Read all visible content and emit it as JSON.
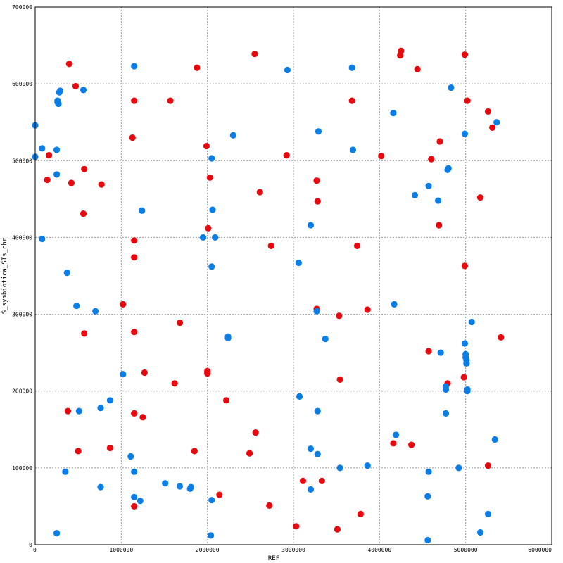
{
  "chart_data": {
    "type": "scatter",
    "xlabel": "REF",
    "ylabel": "S_symbiotica_STs_chr",
    "xlim": [
      0,
      6000000
    ],
    "ylim": [
      0,
      700000
    ],
    "x_ticks": [
      0,
      1000000,
      2000000,
      3000000,
      4000000,
      5000000,
      6000000
    ],
    "y_ticks": [
      0,
      100000,
      200000,
      300000,
      400000,
      500000,
      600000,
      700000
    ],
    "x_tick_labels": [
      "0",
      "1000000",
      "2000000",
      "3000000",
      "4000000",
      "5000000",
      "6000000"
    ],
    "y_tick_labels": [
      "0",
      "100000",
      "200000",
      "300000",
      "400000",
      "500000",
      "600000",
      "700000"
    ],
    "grid": true,
    "legend": "none",
    "series": [
      {
        "color": "#e8080e",
        "points": [
          [
            395000,
            626000
          ],
          [
            470000,
            597000
          ],
          [
            1150000,
            578000
          ],
          [
            1570000,
            578000
          ],
          [
            1880000,
            621000
          ],
          [
            2550000,
            639000
          ],
          [
            3680000,
            578000
          ],
          [
            4250000,
            643000
          ],
          [
            4240000,
            637000
          ],
          [
            4440000,
            619000
          ],
          [
            4990000,
            638000
          ],
          [
            5020000,
            578000
          ],
          [
            5260000,
            564000
          ],
          [
            5310000,
            543000
          ],
          [
            4700000,
            525000
          ],
          [
            1130000,
            530000
          ],
          [
            1990000,
            519000
          ],
          [
            2920000,
            507000
          ],
          [
            4020000,
            506000
          ],
          [
            4600000,
            502000
          ],
          [
            160000,
            507000
          ],
          [
            140000,
            475000
          ],
          [
            570000,
            489000
          ],
          [
            420000,
            471000
          ],
          [
            770000,
            469000
          ],
          [
            2030000,
            478000
          ],
          [
            3270000,
            474000
          ],
          [
            2610000,
            459000
          ],
          [
            3280000,
            447000
          ],
          [
            5170000,
            452000
          ],
          [
            560000,
            431000
          ],
          [
            1150000,
            396000
          ],
          [
            2010000,
            412000
          ],
          [
            2740000,
            389000
          ],
          [
            3740000,
            389000
          ],
          [
            4690000,
            416000
          ],
          [
            1150000,
            374000
          ],
          [
            4990000,
            363000
          ],
          [
            1020000,
            313000
          ],
          [
            3270000,
            307000
          ],
          [
            3860000,
            306000
          ],
          [
            3530000,
            298000
          ],
          [
            570000,
            275000
          ],
          [
            1150000,
            277000
          ],
          [
            1680000,
            289000
          ],
          [
            5410000,
            270000
          ],
          [
            4570000,
            252000
          ],
          [
            1270000,
            224000
          ],
          [
            2000000,
            226000
          ],
          [
            2000000,
            223000
          ],
          [
            1620000,
            210000
          ],
          [
            3540000,
            215000
          ],
          [
            4980000,
            218000
          ],
          [
            4790000,
            210000
          ],
          [
            380000,
            174000
          ],
          [
            1150000,
            171000
          ],
          [
            1250000,
            166000
          ],
          [
            2220000,
            188000
          ],
          [
            500000,
            122000
          ],
          [
            870000,
            126000
          ],
          [
            1850000,
            122000
          ],
          [
            2490000,
            119000
          ],
          [
            2560000,
            146000
          ],
          [
            4160000,
            132000
          ],
          [
            4370000,
            130000
          ],
          [
            5260000,
            103000
          ],
          [
            3110000,
            83000
          ],
          [
            3330000,
            83000
          ],
          [
            2140000,
            65000
          ],
          [
            1150000,
            50000
          ],
          [
            2720000,
            51000
          ],
          [
            3780000,
            40000
          ],
          [
            3030000,
            24000
          ],
          [
            3510000,
            20000
          ]
        ]
      },
      {
        "color": "#0a7ee6",
        "points": [
          [
            0,
            546000
          ],
          [
            290000,
            591000
          ],
          [
            280000,
            589000
          ],
          [
            560000,
            592000
          ],
          [
            260000,
            578000
          ],
          [
            260000,
            576000
          ],
          [
            270000,
            574000
          ],
          [
            1150000,
            623000
          ],
          [
            2930000,
            618000
          ],
          [
            3680000,
            621000
          ],
          [
            4830000,
            595000
          ],
          [
            4160000,
            562000
          ],
          [
            5360000,
            550000
          ],
          [
            4990000,
            535000
          ],
          [
            3290000,
            538000
          ],
          [
            2300000,
            533000
          ],
          [
            3690000,
            514000
          ],
          [
            80000,
            516000
          ],
          [
            250000,
            514000
          ],
          [
            0,
            505000
          ],
          [
            2050000,
            503000
          ],
          [
            250000,
            482000
          ],
          [
            4800000,
            490000
          ],
          [
            4790000,
            488000
          ],
          [
            4570000,
            467000
          ],
          [
            4410000,
            455000
          ],
          [
            4680000,
            448000
          ],
          [
            1240000,
            435000
          ],
          [
            2060000,
            436000
          ],
          [
            3200000,
            416000
          ],
          [
            1950000,
            400000
          ],
          [
            2090000,
            400000
          ],
          [
            80000,
            398000
          ],
          [
            2050000,
            362000
          ],
          [
            3060000,
            367000
          ],
          [
            370000,
            354000
          ],
          [
            480000,
            311000
          ],
          [
            700000,
            304000
          ],
          [
            4170000,
            313000
          ],
          [
            3270000,
            304000
          ],
          [
            5070000,
            290000
          ],
          [
            2240000,
            271000
          ],
          [
            2240000,
            269000
          ],
          [
            3370000,
            268000
          ],
          [
            4990000,
            262000
          ],
          [
            5000000,
            248000
          ],
          [
            5000000,
            244000
          ],
          [
            5010000,
            240000
          ],
          [
            5010000,
            236000
          ],
          [
            4710000,
            250000
          ],
          [
            1020000,
            222000
          ],
          [
            4770000,
            206000
          ],
          [
            4770000,
            202000
          ],
          [
            5020000,
            202000
          ],
          [
            5020000,
            200000
          ],
          [
            3070000,
            193000
          ],
          [
            870000,
            188000
          ],
          [
            760000,
            178000
          ],
          [
            510000,
            174000
          ],
          [
            3280000,
            174000
          ],
          [
            4770000,
            171000
          ],
          [
            4190000,
            143000
          ],
          [
            5340000,
            137000
          ],
          [
            3200000,
            125000
          ],
          [
            3280000,
            118000
          ],
          [
            1110000,
            115000
          ],
          [
            1150000,
            95000
          ],
          [
            350000,
            95000
          ],
          [
            3540000,
            100000
          ],
          [
            3860000,
            103000
          ],
          [
            4570000,
            95000
          ],
          [
            4920000,
            100000
          ],
          [
            760000,
            75000
          ],
          [
            1510000,
            80000
          ],
          [
            1680000,
            76000
          ],
          [
            1810000,
            75000
          ],
          [
            1800000,
            73000
          ],
          [
            3200000,
            72000
          ],
          [
            1150000,
            62000
          ],
          [
            1220000,
            57000
          ],
          [
            2050000,
            58000
          ],
          [
            4560000,
            63000
          ],
          [
            5260000,
            40000
          ],
          [
            250000,
            15000
          ],
          [
            2040000,
            12000
          ],
          [
            5170000,
            16000
          ],
          [
            4560000,
            6000
          ]
        ]
      }
    ]
  }
}
